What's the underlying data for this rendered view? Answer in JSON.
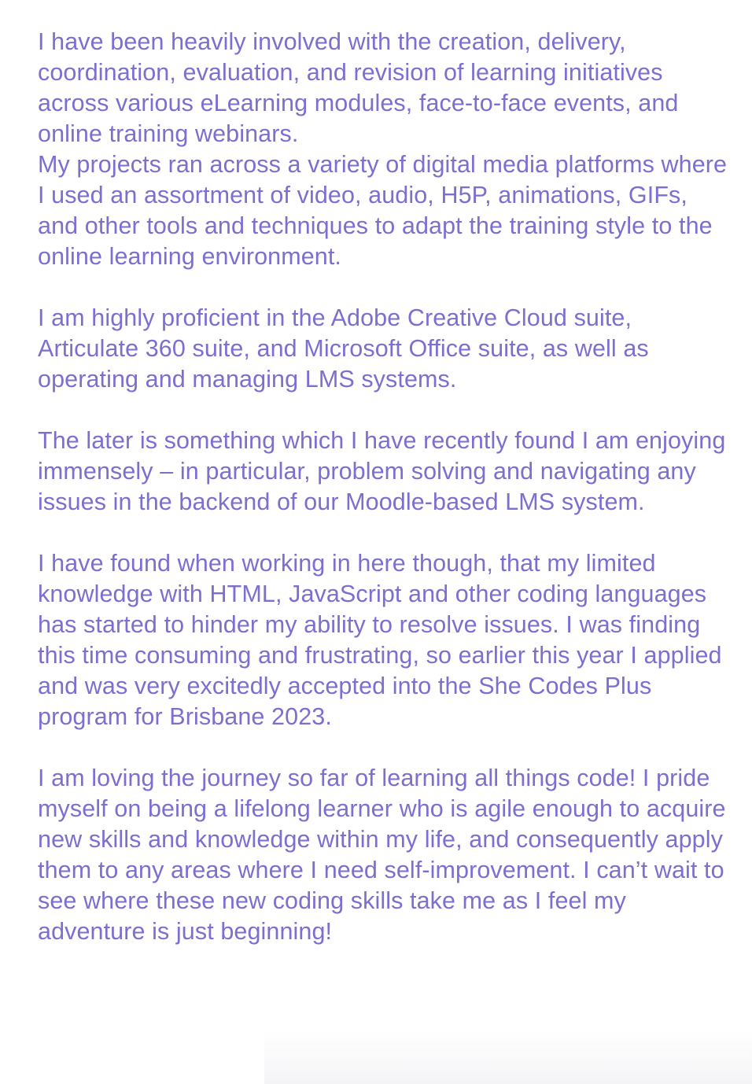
{
  "about": {
    "paragraphs": [
      "I have been heavily involved with the creation, delivery, coordination, evaluation, and revision of learning initiatives across various eLearning modules, face-to-face events, and online training webinars.",
      "My projects ran across a variety of digital media platforms where I used an assortment of video, audio, H5P, animations, GIFs, and other tools and techniques to adapt the training style to the online learning environment.",
      "I am highly proficient in the Adobe Creative Cloud suite, Articulate 360 suite, and Microsoft Office suite, as well as operating and managing LMS systems.",
      "The later is something which I have recently found I am enjoying immensely – in particular, problem solving and navigating any issues in the backend of our Moodle-based LMS system.",
      "I have found when working in here though, that my limited knowledge with HTML, JavaScript and other coding languages has started to hinder my ability to resolve issues. I was finding this time consuming and frustrating, so earlier this year I applied and was very excitedly accepted into the She Codes Plus program for Brisbane 2023.",
      "I am loving the journey so far of learning all things code! I pride myself on being a lifelong learner who is agile enough to acquire new skills and knowledge within my life, and consequently apply them to any areas where I need self-improvement. I can’t wait to see where these new coding skills take me as I feel my adventure is just beginning!"
    ]
  },
  "colors": {
    "text": "#7b6fd0",
    "background": "#ffffff"
  }
}
